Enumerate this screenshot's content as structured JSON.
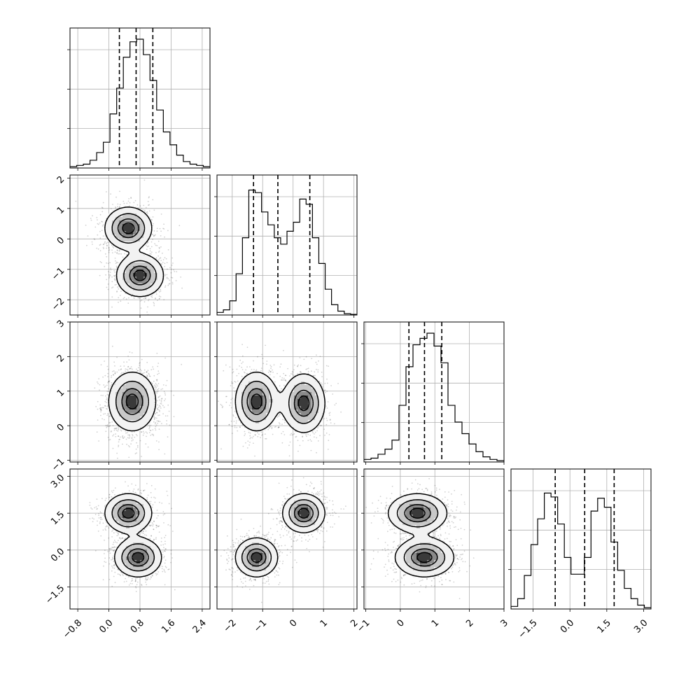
{
  "chart_data": {
    "type": "corner",
    "grid": true,
    "parameters": [
      {
        "center": 0.7,
        "sd": 0.32,
        "quantiles": [
          0.27,
          0.7,
          1.13
        ],
        "range": [
          -1.0,
          2.6
        ],
        "ticks": [
          -0.8,
          0.0,
          0.8,
          1.6,
          2.4
        ],
        "tick_labels": [
          "−0.8",
          "0.0",
          "0.8",
          "1.6",
          "2.4"
        ]
      },
      {
        "modes": [
          -1.2,
          0.35
        ],
        "sd": 0.35,
        "quantiles": [
          -1.3,
          -0.5,
          0.55
        ],
        "range": [
          -2.5,
          2.1
        ],
        "ticks": [
          -2,
          -1,
          0,
          1,
          2
        ],
        "tick_labels": [
          "−2",
          "−1",
          "0",
          "1",
          "2"
        ]
      },
      {
        "center": 0.7,
        "sd": 0.45,
        "quantiles": [
          0.25,
          0.7,
          1.2
        ],
        "range": [
          -1.05,
          3.0
        ],
        "ticks": [
          -1,
          0,
          1,
          2,
          3
        ],
        "tick_labels": [
          "−1",
          "0",
          "1",
          "2",
          "3"
        ]
      },
      {
        "modes": [
          -0.3,
          1.5
        ],
        "sd": 0.4,
        "quantiles": [
          -0.6,
          0.6,
          1.8
        ],
        "range": [
          -2.4,
          3.3
        ],
        "ticks": [
          -1.5,
          0.0,
          1.5,
          3.0
        ],
        "tick_labels": [
          "−1.5",
          "0.0",
          "1.5",
          "3.0"
        ]
      }
    ],
    "histograms": [
      [
        0.01,
        0.02,
        0.03,
        0.06,
        0.12,
        0.2,
        0.42,
        0.62,
        0.86,
        0.98,
        1.0,
        0.88,
        0.68,
        0.45,
        0.28,
        0.18,
        0.1,
        0.05,
        0.03,
        0.02,
        0.01
      ],
      [
        0.02,
        0.04,
        0.11,
        0.32,
        0.6,
        0.97,
        0.95,
        0.8,
        0.7,
        0.6,
        0.55,
        0.65,
        0.72,
        0.9,
        0.86,
        0.6,
        0.4,
        0.2,
        0.08,
        0.03,
        0.01,
        0.005
      ],
      [
        0.02,
        0.03,
        0.06,
        0.1,
        0.17,
        0.44,
        0.74,
        0.91,
        0.96,
        1.0,
        0.9,
        0.77,
        0.44,
        0.31,
        0.22,
        0.14,
        0.08,
        0.04,
        0.02,
        0.01
      ],
      [
        0.02,
        0.08,
        0.26,
        0.5,
        0.7,
        0.9,
        0.87,
        0.66,
        0.4,
        0.27,
        0.27,
        0.4,
        0.76,
        0.86,
        0.79,
        0.52,
        0.3,
        0.16,
        0.08,
        0.03,
        0.01
      ]
    ],
    "joint_modes": {
      "1,0": [
        [
          0.5,
          0.35
        ],
        [
          0.8,
          -1.2
        ]
      ],
      "2,0": [
        [
          0.6,
          0.7
        ]
      ],
      "2,1": [
        [
          -1.2,
          0.7
        ],
        [
          0.35,
          0.65
        ]
      ],
      "3,0": [
        [
          0.5,
          1.5
        ],
        [
          0.75,
          -0.3
        ]
      ],
      "3,1": [
        [
          -1.2,
          -0.3
        ],
        [
          0.35,
          1.5
        ]
      ],
      "3,2": [
        [
          0.5,
          1.5
        ],
        [
          0.7,
          -0.3
        ]
      ]
    }
  }
}
